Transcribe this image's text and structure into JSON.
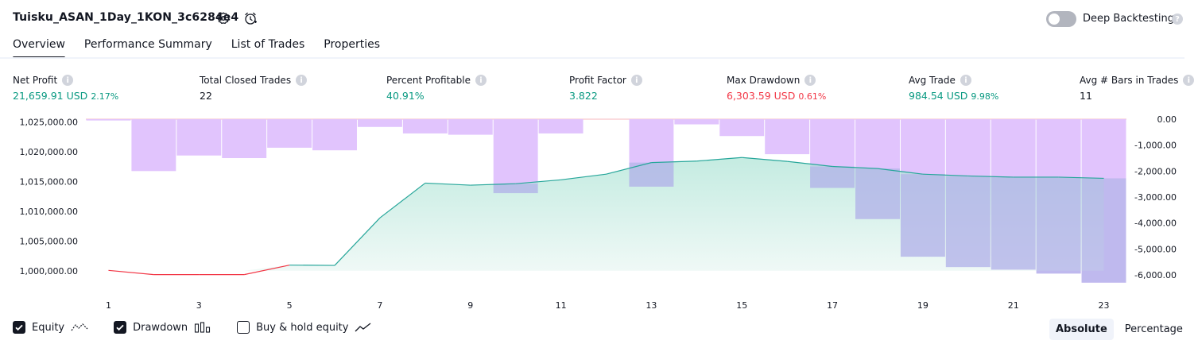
{
  "header": {
    "strategy_title": "Tuisku_ASAN_1Day_1KON_3c6284e4",
    "deep_backtesting_label": "Deep Backtesting",
    "deep_backtesting_enabled": false,
    "help_glyph": "?"
  },
  "tabs": [
    {
      "label": "Overview",
      "active": true
    },
    {
      "label": "Performance Summary",
      "active": false
    },
    {
      "label": "List of Trades",
      "active": false
    },
    {
      "label": "Properties",
      "active": false
    }
  ],
  "metrics": [
    {
      "label": "Net Profit",
      "value": "21,659.91 USD",
      "percent": "2.17%",
      "tone": "green"
    },
    {
      "label": "Total Closed Trades",
      "value": "22",
      "percent": "",
      "tone": "neutral"
    },
    {
      "label": "Percent Profitable",
      "value": "40.91%",
      "percent": "",
      "tone": "green"
    },
    {
      "label": "Profit Factor",
      "value": "3.822",
      "percent": "",
      "tone": "green"
    },
    {
      "label": "Max Drawdown",
      "value": "6,303.59 USD",
      "percent": "0.61%",
      "tone": "red"
    },
    {
      "label": "Avg Trade",
      "value": "984.54 USD",
      "percent": "9.98%",
      "tone": "green"
    },
    {
      "label": "Avg # Bars in Trades",
      "value": "11",
      "percent": "",
      "tone": "neutral"
    }
  ],
  "chart_data": {
    "type": "line",
    "x": [
      1,
      2,
      3,
      4,
      5,
      6,
      7,
      8,
      9,
      10,
      11,
      12,
      13,
      14,
      15,
      16,
      17,
      18,
      19,
      20,
      21,
      22,
      23
    ],
    "equity": [
      1000060,
      999350,
      999350,
      999350,
      1000950,
      1000900,
      1008900,
      1014750,
      1014400,
      1014650,
      1015300,
      1016250,
      1018200,
      1018450,
      1019050,
      1018400,
      1017550,
      1017200,
      1016250,
      1015950,
      1015750,
      1015750,
      1015550
    ],
    "drawdown": [
      -50,
      -2000,
      -1400,
      -1500,
      -1100,
      -1200,
      -300,
      -550,
      -600,
      -2850,
      -550,
      0,
      -2600,
      -200,
      -650,
      -1350,
      -2650,
      -3850,
      -5300,
      -5700,
      -5800,
      -5950,
      -6300
    ],
    "equity_ylim": [
      998500,
      1025500
    ],
    "drawdown_ylim": [
      -6400,
      0
    ],
    "left_ticks": [
      "1,025,000.00",
      "1,020,000.00",
      "1,015,000.00",
      "1,010,000.00",
      "1,005,000.00",
      "1,000,000.00"
    ],
    "left_tick_values": [
      1025000,
      1020000,
      1015000,
      1010000,
      1005000,
      1000000
    ],
    "right_ticks": [
      "0.00",
      "-1,000.00",
      "-2,000.00",
      "-3,000.00",
      "-4,000.00",
      "-5,000.00",
      "-6,000.00"
    ],
    "right_tick_values": [
      0,
      -1000,
      -2000,
      -3000,
      -4000,
      -5000,
      -6000
    ],
    "x_tick_labels": [
      "1",
      "3",
      "5",
      "7",
      "9",
      "11",
      "13",
      "15",
      "17",
      "19",
      "21",
      "23"
    ],
    "colors": {
      "equity_line": "#26a69a",
      "equity_fill": "#d4f0ea",
      "equity_below_line": "#f23645",
      "drawdown_bar": "#e1c4fd",
      "overlap_bar": "#b3b6e8"
    }
  },
  "legend": {
    "items": [
      {
        "label": "Equity",
        "checked": true,
        "icon": "equity-line-icon"
      },
      {
        "label": "Drawdown",
        "checked": true,
        "icon": "drawdown-bars-icon"
      },
      {
        "label": "Buy & hold equity",
        "checked": false,
        "icon": "buy-hold-line-icon"
      }
    ],
    "mode_absolute": "Absolute",
    "mode_percentage": "Percentage",
    "selected_mode": "Absolute"
  }
}
